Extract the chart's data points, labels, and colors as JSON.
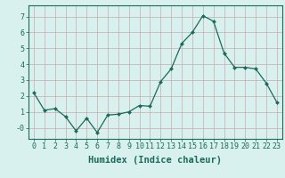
{
  "x": [
    0,
    1,
    2,
    3,
    4,
    5,
    6,
    7,
    8,
    9,
    10,
    11,
    12,
    13,
    14,
    15,
    16,
    17,
    18,
    19,
    20,
    21,
    22,
    23
  ],
  "y": [
    2.2,
    1.1,
    1.2,
    0.7,
    -0.2,
    0.6,
    -0.3,
    0.8,
    0.85,
    1.0,
    1.4,
    1.35,
    2.9,
    3.7,
    5.3,
    6.0,
    7.05,
    6.7,
    4.7,
    3.8,
    3.8,
    3.7,
    2.8,
    1.6
  ],
  "line_color": "#1a6b5a",
  "marker": "D",
  "marker_size": 2.0,
  "bg_color": "#d8f0ee",
  "grid_color": "#c8aaaa",
  "axis_color": "#1a6b5a",
  "xlabel": "Humidex (Indice chaleur)",
  "xlim": [
    -0.5,
    23.5
  ],
  "ylim": [
    -0.7,
    7.7
  ],
  "yticks": [
    0,
    1,
    2,
    3,
    4,
    5,
    6,
    7
  ],
  "ytick_labels": [
    "-0",
    "1",
    "2",
    "3",
    "4",
    "5",
    "6",
    "7"
  ],
  "xticks": [
    0,
    1,
    2,
    3,
    4,
    5,
    6,
    7,
    8,
    9,
    10,
    11,
    12,
    13,
    14,
    15,
    16,
    17,
    18,
    19,
    20,
    21,
    22,
    23
  ],
  "font_size": 6.0,
  "xlabel_fontsize": 7.5
}
